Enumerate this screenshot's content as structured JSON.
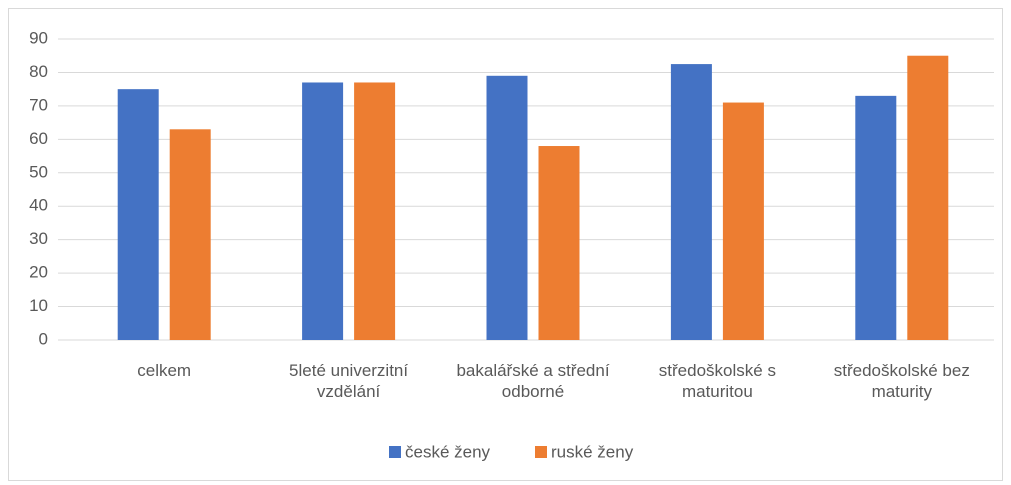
{
  "chart_data": {
    "type": "bar",
    "categories": [
      "celkem",
      "5leté univerzitní vzdělání",
      "bakalářské a střední odborné",
      "středoškolské s maturitou",
      "středoškolské bez maturity"
    ],
    "series": [
      {
        "name": "české ženy",
        "color": "#4472c4",
        "values": [
          75,
          77,
          79,
          82.5,
          73
        ]
      },
      {
        "name": "ruské ženy",
        "color": "#ed7d31",
        "values": [
          63,
          77,
          58,
          71,
          85
        ]
      }
    ],
    "ylim": [
      0,
      90
    ],
    "yticks": [
      0,
      10,
      20,
      30,
      40,
      50,
      60,
      70,
      80,
      90
    ],
    "grid": true,
    "legend": "bottom"
  }
}
